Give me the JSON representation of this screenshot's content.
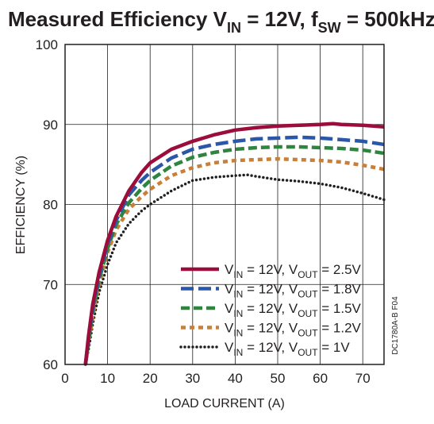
{
  "chart_data": {
    "type": "line",
    "title": {
      "prefix": "Measured Efficiency V",
      "prefix_sub": "IN",
      "middle": " = 12V, f",
      "middle_sub": "SW",
      "suffix": " = 500kHz"
    },
    "xlabel": "LOAD CURRENT (A)",
    "ylabel": "EFFICIENCY (%)",
    "xlim": [
      0,
      75
    ],
    "ylim": [
      60,
      100
    ],
    "x_ticks": [
      0,
      10,
      20,
      30,
      40,
      50,
      60,
      70
    ],
    "y_ticks": [
      60,
      70,
      80,
      90,
      100
    ],
    "grid": true,
    "legend_position": "bottom-right",
    "figure_id": "DC1780A-B F04",
    "series": [
      {
        "name": "VIN = 12V, VOUT = 2.5V",
        "legend": {
          "a": "V",
          "a_sub": "IN",
          "b": " = 12V, V",
          "b_sub": "OUT",
          "c": " = 2.5V"
        },
        "color": "#9b0d3a",
        "dash": "solid",
        "x": [
          4.8,
          5.5,
          6.5,
          8,
          10,
          12,
          15,
          18,
          20,
          25,
          30,
          35,
          40,
          45,
          50,
          55,
          60,
          63,
          65,
          70,
          75
        ],
        "y": [
          60,
          63.5,
          67.5,
          71.5,
          75.5,
          78.5,
          81.7,
          84,
          85.2,
          86.9,
          87.9,
          88.7,
          89.3,
          89.6,
          89.8,
          89.9,
          90,
          90.1,
          90,
          89.9,
          89.7
        ]
      },
      {
        "name": "VIN = 12V, VOUT = 1.8V",
        "legend": {
          "a": "V",
          "a_sub": "IN",
          "b": " = 12V, V",
          "b_sub": "OUT",
          "c": " = 1.8V"
        },
        "color": "#2b57a8",
        "dash": "long",
        "x": [
          4.8,
          5.5,
          6.5,
          8,
          10,
          12,
          15,
          18,
          20,
          25,
          30,
          35,
          40,
          45,
          50,
          55,
          60,
          65,
          70,
          75
        ],
        "y": [
          60,
          63.2,
          67,
          71,
          75,
          78,
          81.2,
          83,
          84,
          85.8,
          86.9,
          87.5,
          87.9,
          88.2,
          88.3,
          88.4,
          88.3,
          88.1,
          87.9,
          87.5
        ]
      },
      {
        "name": "VIN = 12V, VOUT = 1.5V",
        "legend": {
          "a": "V",
          "a_sub": "IN",
          "b": " = 12V, V",
          "b_sub": "OUT",
          "c": " = 1.5V"
        },
        "color": "#2e8540",
        "dash": "medium",
        "x": [
          4.8,
          5.5,
          6.5,
          8,
          10,
          12,
          15,
          18,
          20,
          25,
          30,
          35,
          40,
          45,
          50,
          55,
          60,
          65,
          70,
          75
        ],
        "y": [
          60,
          62.8,
          66.5,
          70.5,
          74.5,
          77.5,
          80.2,
          82,
          83,
          84.8,
          85.9,
          86.5,
          86.9,
          87.1,
          87.2,
          87.2,
          87.1,
          87,
          86.8,
          86.4
        ]
      },
      {
        "name": "VIN = 12V, VOUT = 1.2V",
        "legend": {
          "a": "V",
          "a_sub": "IN",
          "b": " = 12V, V",
          "b_sub": "OUT",
          "c": " = 1.2V"
        },
        "color": "#c87f3a",
        "dash": "short",
        "x": [
          4.8,
          5.5,
          6.5,
          8,
          10,
          12,
          15,
          18,
          20,
          25,
          30,
          35,
          40,
          45,
          50,
          55,
          60,
          65,
          70,
          75
        ],
        "y": [
          60,
          62.5,
          66,
          70,
          74,
          76.8,
          79.4,
          81,
          81.9,
          83.6,
          84.6,
          85.2,
          85.5,
          85.6,
          85.7,
          85.6,
          85.5,
          85.3,
          84.9,
          84.4
        ]
      },
      {
        "name": "VIN = 12V, VOUT = 1V",
        "legend": {
          "a": "V",
          "a_sub": "IN",
          "b": " = 12V, V",
          "b_sub": "OUT",
          "c": " = 1V"
        },
        "color": "#231f20",
        "dash": "dotted",
        "x": [
          4.8,
          5.5,
          6.5,
          8,
          10,
          12,
          15,
          18,
          20,
          25,
          30,
          35,
          40,
          43,
          45,
          50,
          55,
          60,
          65,
          70,
          75
        ],
        "y": [
          60,
          61.8,
          65,
          69,
          72.5,
          75.2,
          77.6,
          79.2,
          80,
          81.7,
          83,
          83.4,
          83.6,
          83.7,
          83.5,
          83.1,
          82.9,
          82.6,
          82.1,
          81.4,
          80.6
        ]
      }
    ]
  }
}
